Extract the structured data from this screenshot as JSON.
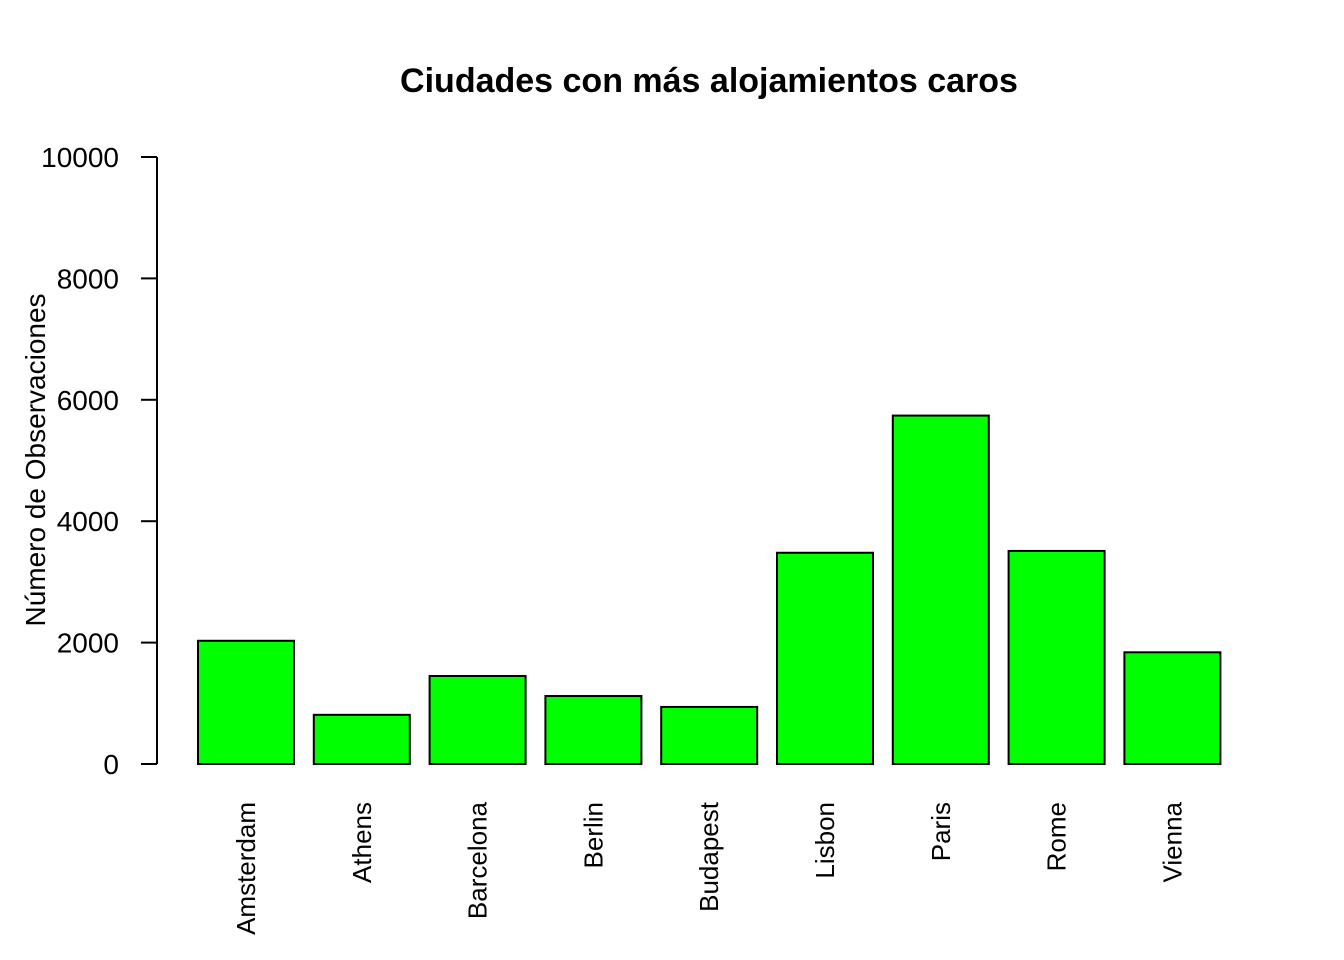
{
  "chart_data": {
    "type": "bar",
    "title": "Ciudades con más alojamientos caros",
    "xlabel": "",
    "ylabel": "Número de Observaciones",
    "categories": [
      "Amsterdam",
      "Athens",
      "Barcelona",
      "Berlin",
      "Budapest",
      "Lisbon",
      "Paris",
      "Rome",
      "Vienna"
    ],
    "values": [
      2030,
      810,
      1450,
      1120,
      940,
      3480,
      5740,
      3510,
      1840
    ],
    "ylim": [
      0,
      10000
    ],
    "yticks": [
      "0",
      "2000",
      "4000",
      "6000",
      "8000",
      "10000"
    ],
    "grid": false,
    "bar_color": "#00ff00",
    "bar_border_color": "#000000"
  }
}
